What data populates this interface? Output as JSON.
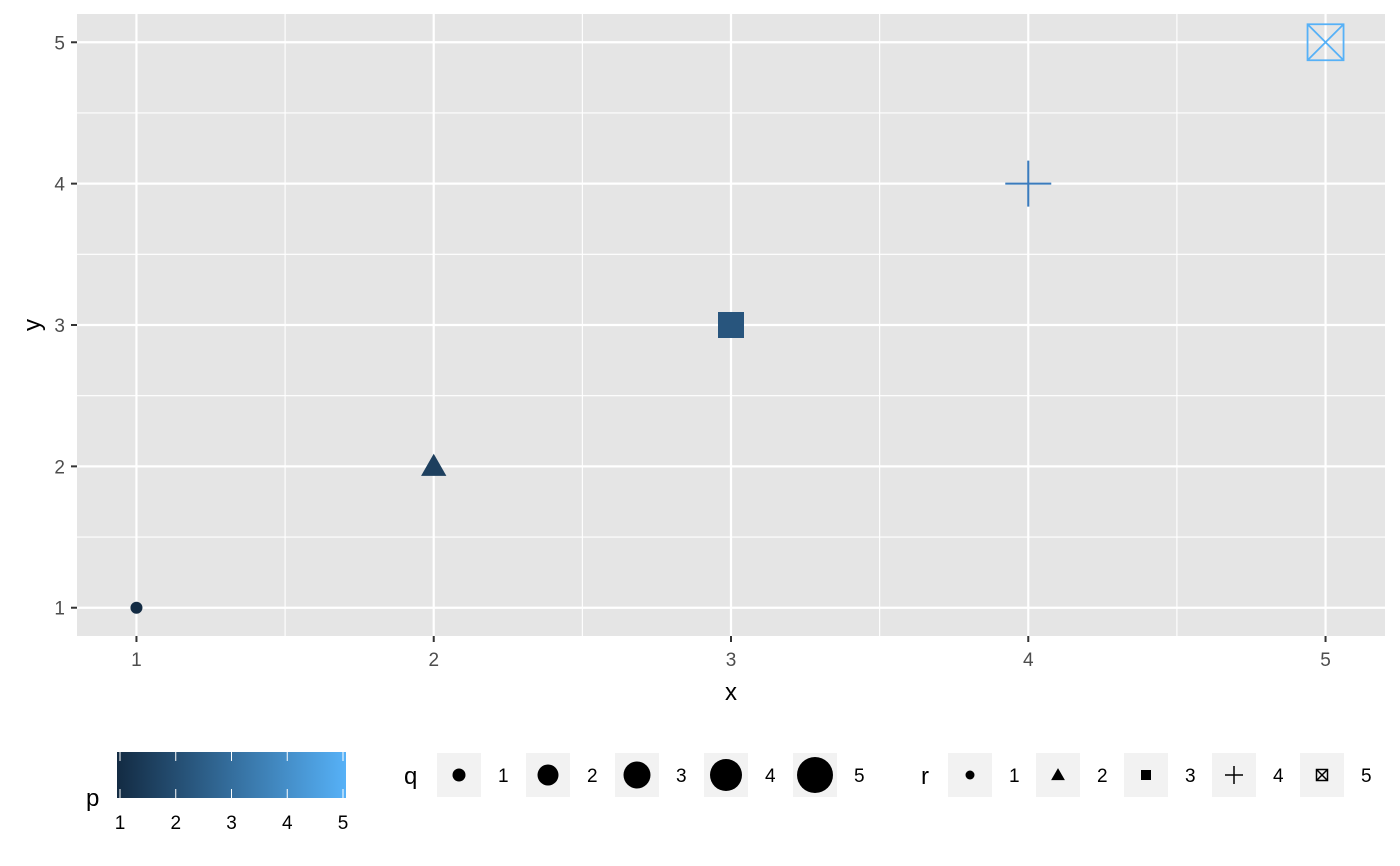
{
  "chart_data": {
    "type": "scatter",
    "title": "",
    "xlabel": "x",
    "ylabel": "y",
    "xlim": [
      0.8,
      5.2
    ],
    "ylim": [
      0.8,
      5.2
    ],
    "x_ticks": [
      1,
      2,
      3,
      4,
      5
    ],
    "y_ticks": [
      1,
      2,
      3,
      4,
      5
    ],
    "x_tick_labels": [
      "1",
      "2",
      "3",
      "4",
      "5"
    ],
    "y_tick_labels": [
      "1",
      "2",
      "3",
      "4",
      "5"
    ],
    "grid": true,
    "panel_background": "#e5e5e5",
    "grid_color": "#ffffff",
    "points": [
      {
        "x": 1,
        "y": 1,
        "p": 1,
        "q": 1,
        "r": 1,
        "shape": "circle",
        "color": "#132b43"
      },
      {
        "x": 2,
        "y": 2,
        "p": 2,
        "q": 2,
        "r": 2,
        "shape": "triangle",
        "color": "#1d3f5e"
      },
      {
        "x": 3,
        "y": 3,
        "p": 3,
        "q": 3,
        "r": 3,
        "shape": "square",
        "color": "#28557d"
      },
      {
        "x": 4,
        "y": 4,
        "p": 4,
        "q": 4,
        "r": 4,
        "shape": "plus",
        "color": "#3a7bbd"
      },
      {
        "x": 5,
        "y": 5,
        "p": 5,
        "q": 5,
        "r": 5,
        "shape": "square-cross",
        "color": "#56b1f7"
      }
    ],
    "legend_position": "bottom",
    "legends": {
      "p": {
        "title": "p",
        "type": "colorbar",
        "low_color": "#132b43",
        "high_color": "#56b1f7",
        "range": [
          1,
          5
        ],
        "labels": [
          "1",
          "2",
          "3",
          "4",
          "5"
        ]
      },
      "q": {
        "title": "q",
        "type": "size",
        "labels": [
          "1",
          "2",
          "3",
          "4",
          "5"
        ]
      },
      "r": {
        "title": "r",
        "type": "shape",
        "shapes": [
          "circle",
          "triangle",
          "square",
          "plus",
          "square-cross"
        ],
        "labels": [
          "1",
          "2",
          "3",
          "4",
          "5"
        ]
      }
    }
  }
}
